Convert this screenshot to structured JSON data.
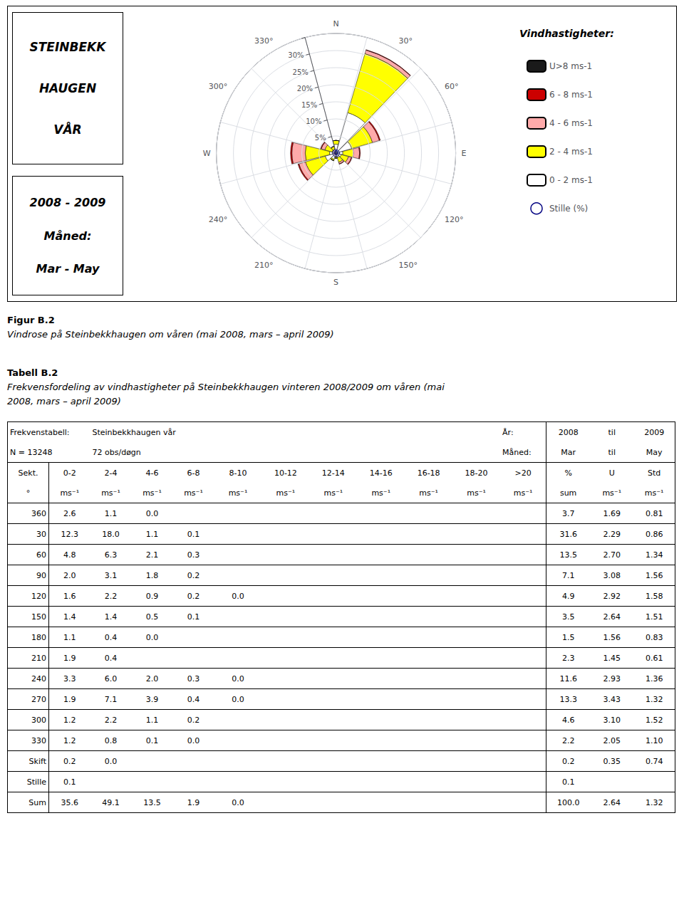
{
  "chart_data": {
    "type": "windrose",
    "stacked": true,
    "grid": true,
    "legend": "right",
    "legend_title": "Vindhastigheter:",
    "info_boxes": [
      [
        "STEINBEKK",
        "HAUGEN",
        "VÅR"
      ],
      [
        "2008 - 2009",
        "Måned:",
        "Mar - May"
      ]
    ],
    "categories": [
      "N",
      "30°",
      "60°",
      "E",
      "120°",
      "150°",
      "S",
      "210°",
      "240°",
      "W",
      "300°",
      "330°"
    ],
    "series": [
      {
        "name": "0 - 2 ms-1",
        "color": "#ffffff",
        "values": [
          2.6,
          12.3,
          4.8,
          2.0,
          1.6,
          1.4,
          1.1,
          1.9,
          3.3,
          1.9,
          1.2,
          1.2
        ]
      },
      {
        "name": "2 - 4 ms-1",
        "color": "#ffff00",
        "values": [
          1.1,
          18.0,
          6.3,
          3.1,
          2.2,
          1.4,
          0.4,
          0.4,
          6.0,
          7.1,
          2.2,
          0.8
        ]
      },
      {
        "name": "4 - 6 ms-1",
        "color": "#ffaaaa",
        "values": [
          0.0,
          1.1,
          2.1,
          1.8,
          0.9,
          0.5,
          0.0,
          0.0,
          2.0,
          3.9,
          1.1,
          0.1
        ]
      },
      {
        "name": "6 - 8 ms-1",
        "color": "#cc0000",
        "values": [
          0.0,
          0.1,
          0.3,
          0.2,
          0.2,
          0.1,
          0.0,
          0.0,
          0.3,
          0.4,
          0.2,
          0.0
        ]
      },
      {
        "name": "U>8 ms-1",
        "color": "#1a1a1a",
        "values": [
          null,
          null,
          null,
          null,
          null,
          null,
          null,
          null,
          null,
          null,
          null,
          null
        ]
      }
    ],
    "ylim": [
      0,
      35
    ],
    "yticks": [
      {
        "value": 5,
        "label": "5%"
      },
      {
        "value": 10,
        "label": "10%"
      },
      {
        "value": 15,
        "label": "15%"
      },
      {
        "value": 20,
        "label": "20%"
      },
      {
        "value": 25,
        "label": "25%"
      },
      {
        "value": 30,
        "label": "30%"
      }
    ],
    "calm": {
      "name": "Stille (%)",
      "radius": 1.0,
      "label": "0",
      "color": "navy"
    }
  },
  "figure_caption": {
    "bold": "Figur B.2",
    "italic": "Vindrose på Steinbekkhaugen om våren (mai 2008, mars – april 2009)"
  },
  "table_caption": {
    "bold": "Tabell B.2",
    "italic": "Frekvensfordeling av vindhastigheter på Steinbekkhaugen vinteren 2008/2009 om våren (mai\n2008, mars – april 2009)"
  },
  "table": {
    "header_rows": [
      [
        "Frekvenstabell:",
        null,
        "Steinbekkhaugen vår",
        null,
        null,
        null,
        null,
        null,
        null,
        null,
        null,
        "År:",
        "2008",
        "til",
        "2009"
      ],
      [
        "N = 13248",
        null,
        "72 obs/døgn",
        null,
        null,
        null,
        null,
        null,
        null,
        null,
        null,
        "Måned:",
        "Mar",
        "til",
        "May"
      ]
    ],
    "columns": [
      "Sekt.",
      "0-2",
      "2-4",
      "4-6",
      "6-8",
      "8-10",
      "10-12",
      "12-14",
      "14-16",
      "16-18",
      "18-20",
      ">20",
      "%",
      "U",
      "Std"
    ],
    "units": [
      "°",
      "ms⁻¹",
      "ms⁻¹",
      "ms⁻¹",
      "ms⁻¹",
      "ms⁻¹",
      "ms⁻¹",
      "ms⁻¹",
      "ms⁻¹",
      "ms⁻¹",
      "ms⁻¹",
      "ms⁻¹",
      "sum",
      "ms⁻¹",
      "ms⁻¹"
    ],
    "rows": [
      [
        "360",
        "2.6",
        "1.1",
        "0.0",
        null,
        null,
        null,
        null,
        null,
        null,
        null,
        null,
        "3.7",
        "1.69",
        "0.81"
      ],
      [
        "30",
        "12.3",
        "18.0",
        "1.1",
        "0.1",
        null,
        null,
        null,
        null,
        null,
        null,
        null,
        "31.6",
        "2.29",
        "0.86"
      ],
      [
        "60",
        "4.8",
        "6.3",
        "2.1",
        "0.3",
        null,
        null,
        null,
        null,
        null,
        null,
        null,
        "13.5",
        "2.70",
        "1.34"
      ],
      [
        "90",
        "2.0",
        "3.1",
        "1.8",
        "0.2",
        null,
        null,
        null,
        null,
        null,
        null,
        null,
        "7.1",
        "3.08",
        "1.56"
      ],
      [
        "120",
        "1.6",
        "2.2",
        "0.9",
        "0.2",
        "0.0",
        null,
        null,
        null,
        null,
        null,
        null,
        "4.9",
        "2.92",
        "1.58"
      ],
      [
        "150",
        "1.4",
        "1.4",
        "0.5",
        "0.1",
        null,
        null,
        null,
        null,
        null,
        null,
        null,
        "3.5",
        "2.64",
        "1.51"
      ],
      [
        "180",
        "1.1",
        "0.4",
        "0.0",
        null,
        null,
        null,
        null,
        null,
        null,
        null,
        null,
        "1.5",
        "1.56",
        "0.83"
      ],
      [
        "210",
        "1.9",
        "0.4",
        null,
        null,
        null,
        null,
        null,
        null,
        null,
        null,
        null,
        "2.3",
        "1.45",
        "0.61"
      ],
      [
        "240",
        "3.3",
        "6.0",
        "2.0",
        "0.3",
        "0.0",
        null,
        null,
        null,
        null,
        null,
        null,
        "11.6",
        "2.93",
        "1.36"
      ],
      [
        "270",
        "1.9",
        "7.1",
        "3.9",
        "0.4",
        "0.0",
        null,
        null,
        null,
        null,
        null,
        null,
        "13.3",
        "3.43",
        "1.32"
      ],
      [
        "300",
        "1.2",
        "2.2",
        "1.1",
        "0.2",
        null,
        null,
        null,
        null,
        null,
        null,
        null,
        "4.6",
        "3.10",
        "1.52"
      ],
      [
        "330",
        "1.2",
        "0.8",
        "0.1",
        "0.0",
        null,
        null,
        null,
        null,
        null,
        null,
        null,
        "2.2",
        "2.05",
        "1.10"
      ],
      [
        "Skift",
        "0.2",
        "0.0",
        null,
        null,
        null,
        null,
        null,
        null,
        null,
        null,
        null,
        "0.2",
        "0.35",
        "0.74"
      ],
      [
        "Stille",
        "0.1",
        null,
        null,
        null,
        null,
        null,
        null,
        null,
        null,
        null,
        null,
        "0.1",
        null,
        null
      ],
      [
        "Sum",
        "35.6",
        "49.1",
        "13.5",
        "1.9",
        "0.0",
        null,
        null,
        null,
        null,
        null,
        null,
        "100.0",
        "2.64",
        "1.32"
      ]
    ]
  }
}
